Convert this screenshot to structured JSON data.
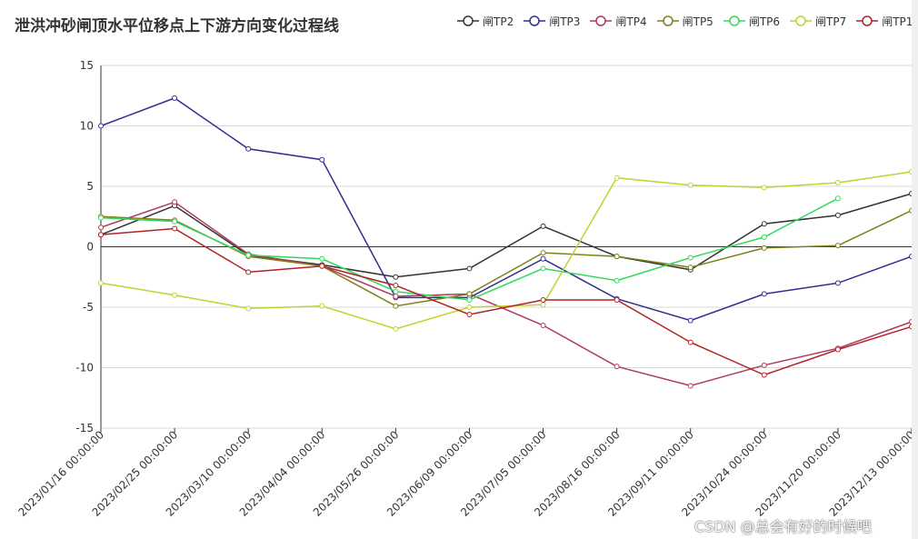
{
  "chart_data": {
    "type": "line",
    "title": "泄洪冲砂闸顶水平位移点上下游方向变化过程线",
    "categories": [
      "2023/01/16 00:00:00",
      "2023/02/25 00:00:00",
      "2023/03/10 00:00:00",
      "2023/04/04 00:00:00",
      "2023/05/26 00:00:00",
      "2023/06/09 00:00:00",
      "2023/07/05 00:00:00",
      "2023/08/16 00:00:00",
      "2023/09/11 00:00:00",
      "2023/10/24 00:00:00",
      "2023/11/20 00:00:00",
      "2023/12/13 00:00:00"
    ],
    "ylim": [
      -15,
      15
    ],
    "yticks": [
      -15,
      -10,
      -5,
      0,
      5,
      10,
      15
    ],
    "grid": true,
    "legend_position": "top-right",
    "series": [
      {
        "name": "闸TP2",
        "color": "#333333",
        "values": [
          1.0,
          3.4,
          -0.7,
          -1.5,
          -2.5,
          -1.8,
          1.7,
          -0.8,
          -1.9,
          1.9,
          2.6,
          4.4
        ]
      },
      {
        "name": "闸TP3",
        "color": "#2f2f8f",
        "values": [
          10.0,
          12.3,
          8.1,
          7.2,
          -4.2,
          -4.2,
          -1.0,
          -4.3,
          -6.1,
          -3.9,
          -3.0,
          -0.8
        ]
      },
      {
        "name": "闸TP4",
        "color": "#b03a5a",
        "values": [
          1.6,
          3.7,
          -0.6,
          -1.6,
          -4.1,
          -3.9,
          -6.5,
          -9.9,
          -11.5,
          -9.8,
          -8.4,
          -6.2
        ]
      },
      {
        "name": "闸TP5",
        "color": "#7f7f1a",
        "values": [
          2.5,
          2.2,
          -0.8,
          -1.6,
          -4.9,
          -3.9,
          -0.5,
          -0.8,
          -1.7,
          -0.1,
          0.1,
          3.0
        ]
      },
      {
        "name": "闸TP6",
        "color": "#33d95c",
        "values": [
          2.4,
          2.1,
          -0.7,
          -1.0,
          -3.7,
          -4.4,
          -1.8,
          -2.8,
          -0.9,
          0.8,
          4.0,
          null
        ]
      },
      {
        "name": "闸TP7",
        "color": "#c2d12e",
        "values": [
          -3.0,
          -4.0,
          -5.1,
          -4.9,
          -6.8,
          -5.0,
          -4.8,
          5.7,
          5.1,
          4.9,
          5.3,
          6.2
        ]
      },
      {
        "name": "闸TP1",
        "color": "#b22222",
        "values": [
          1.0,
          1.5,
          -2.1,
          -1.6,
          -3.2,
          -5.6,
          -4.4,
          -4.4,
          -7.9,
          -10.6,
          -8.5,
          -6.6
        ]
      }
    ]
  },
  "watermark": "CSDN @总会有好的时候吧"
}
